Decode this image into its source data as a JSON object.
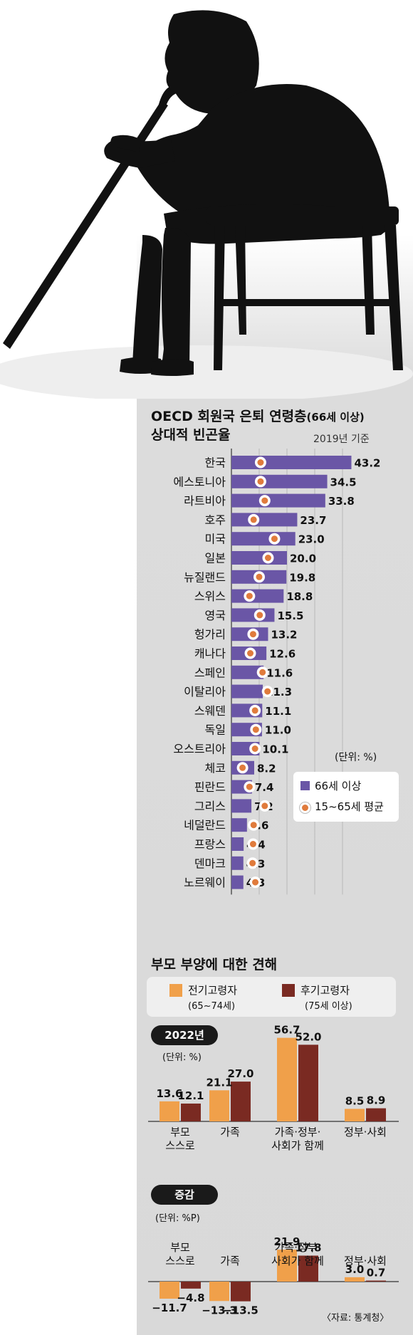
{
  "chart1": {
    "title_line1": "OECD 회원국 은퇴 연령층",
    "title_paren": "(66세 이상)",
    "title_line2": "상대적 빈곤율",
    "year_note": "2019년 기준",
    "unit_note": "(단위: %)",
    "legend": [
      {
        "label": "66세 이상",
        "color": "#6a56a6"
      },
      {
        "label": "15~65세 평균",
        "color": "#e07b3c"
      }
    ]
  },
  "chart2": {
    "title": "부모 부양에 대한 견해",
    "legend": [
      {
        "label": "전기고령자",
        "sub": "(65~74세)",
        "color": "#f0a04a"
      },
      {
        "label": "후기고령자",
        "sub": "(75세 이상)",
        "color": "#7a2a22"
      }
    ],
    "panel_2022": {
      "tag": "2022년",
      "unit": "(단위: %)"
    },
    "panel_change": {
      "tag": "증감",
      "unit": "(단위: %P)"
    },
    "source": "〈자료: 통계청〉"
  },
  "chart_data": [
    {
      "type": "bar",
      "orientation": "horizontal",
      "title": "OECD 회원국 은퇴 연령층(66세 이상) 상대적 빈곤율",
      "subtitle": "2019년 기준",
      "unit": "%",
      "categories": [
        "한국",
        "에스토니아",
        "라트비아",
        "호주",
        "미국",
        "일본",
        "뉴질랜드",
        "스위스",
        "영국",
        "헝가리",
        "캐나다",
        "스페인",
        "이탈리아",
        "스웨덴",
        "독일",
        "오스트리아",
        "체코",
        "핀란드",
        "그리스",
        "네덜란드",
        "프랑스",
        "덴마크",
        "노르웨이"
      ],
      "series": [
        {
          "name": "66세 이상",
          "values": [
            43.2,
            34.5,
            33.8,
            23.7,
            23.0,
            20.0,
            19.8,
            18.8,
            15.5,
            13.2,
            12.6,
            11.6,
            11.3,
            11.1,
            11.0,
            10.1,
            8.2,
            7.4,
            7.2,
            5.6,
            4.4,
            4.3,
            4.3
          ]
        },
        {
          "name": "15~65세 평균",
          "values": [
            10.5,
            10.5,
            12.0,
            8.0,
            15.5,
            13.2,
            10.0,
            6.5,
            10.2,
            7.8,
            6.8,
            11.2,
            13.0,
            8.5,
            8.8,
            8.5,
            4.0,
            6.5,
            12.0,
            8.0,
            7.8,
            7.6,
            8.6
          ]
        }
      ],
      "xlim": [
        0,
        48
      ],
      "grid": true,
      "legend": "right"
    },
    {
      "type": "bar",
      "title": "부모 부양에 대한 견해",
      "panel": "2022년",
      "unit": "%",
      "categories": [
        "부모 스스로",
        "가족",
        "가족·정부·사회가 함께",
        "정부·사회"
      ],
      "series": [
        {
          "name": "전기고령자",
          "values": [
            13.6,
            21.1,
            56.7,
            8.5
          ]
        },
        {
          "name": "후기고령자",
          "values": [
            12.1,
            27.0,
            52.0,
            8.9
          ]
        }
      ],
      "legend": "top"
    },
    {
      "type": "bar",
      "title": "부모 부양에 대한 견해",
      "panel": "증감",
      "unit": "%P",
      "categories": [
        "부모 스스로",
        "가족",
        "가족·정부·사회가 함께",
        "정부·사회"
      ],
      "series": [
        {
          "name": "전기고령자",
          "values": [
            -11.7,
            -13.3,
            21.9,
            3.0
          ]
        },
        {
          "name": "후기고령자",
          "values": [
            -4.8,
            -13.5,
            17.8,
            0.7
          ]
        }
      ],
      "legend": "top"
    }
  ]
}
